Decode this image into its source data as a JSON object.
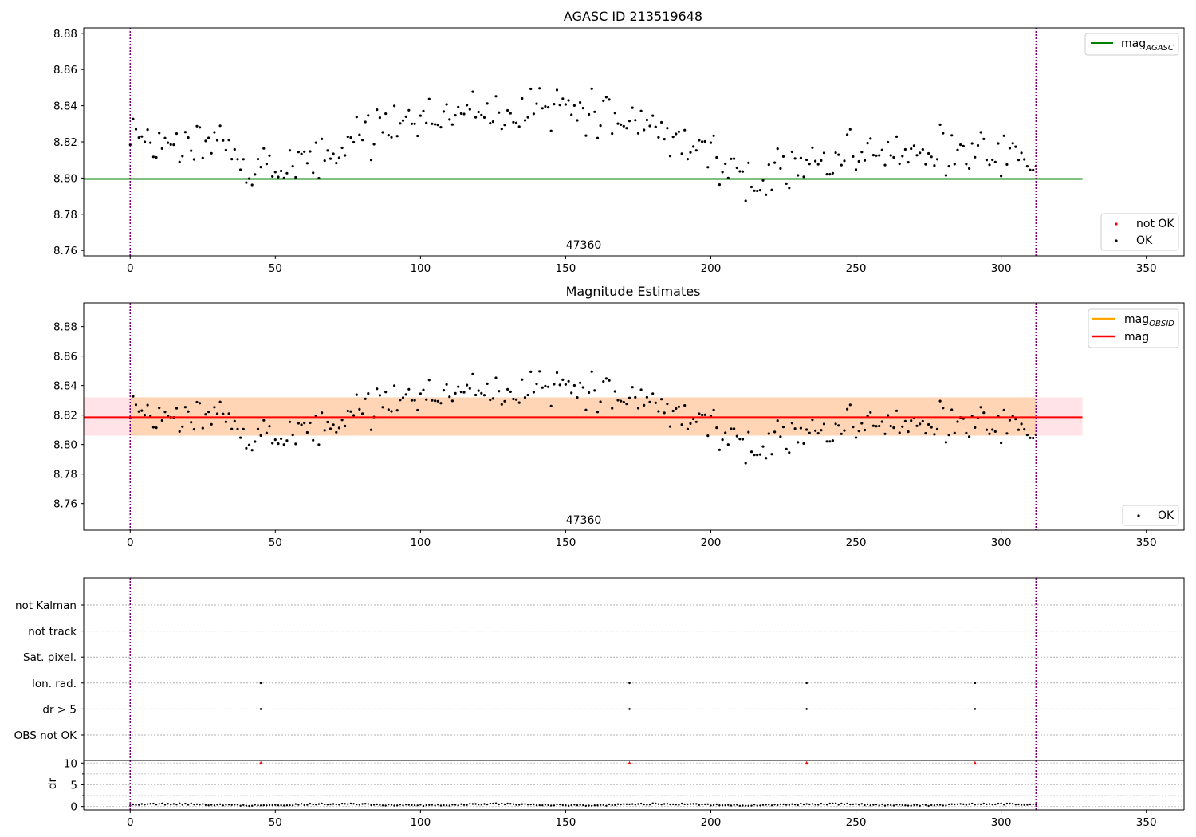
{
  "chart_data": [
    {
      "type": "scatter",
      "title": "AGASC ID 213519648",
      "annotation": "47360",
      "xlim": [
        -16,
        363
      ],
      "ylim": [
        8.757,
        8.883
      ],
      "xticks": [
        "0",
        "50",
        "100",
        "150",
        "200",
        "250",
        "300",
        "350"
      ],
      "yticks": [
        "8.76",
        "8.78",
        "8.80",
        "8.82",
        "8.84",
        "8.86",
        "8.88"
      ],
      "vlines_x": [
        0,
        312
      ],
      "hlines": [
        {
          "name": "mag_AGASC",
          "value": 8.7995,
          "x_range": [
            -16,
            328
          ],
          "color": "#008000"
        }
      ],
      "legend_upper": [
        {
          "label": "mag",
          "subscript": "AGASC",
          "color": "#008000",
          "kind": "line"
        }
      ],
      "legend_lower": [
        {
          "label": "not OK",
          "color": "#ff0000",
          "kind": "point"
        },
        {
          "label": "OK",
          "color": "#000000",
          "kind": "point"
        }
      ],
      "series": [
        {
          "name": "OK",
          "color": "#000000",
          "x": "0..312 (generated in script)",
          "y": "see script"
        }
      ]
    },
    {
      "type": "scatter",
      "title": "Magnitude Estimates",
      "annotation": "47360",
      "xlim": [
        -16,
        363
      ],
      "ylim": [
        8.742,
        8.896
      ],
      "xticks": [
        "0",
        "50",
        "100",
        "150",
        "200",
        "250",
        "300",
        "350"
      ],
      "yticks": [
        "8.76",
        "8.78",
        "8.80",
        "8.82",
        "8.84",
        "8.86",
        "8.88"
      ],
      "vlines_x": [
        0,
        312
      ],
      "hlines": [
        {
          "name": "mag",
          "value": 8.8185,
          "x_range": [
            -16,
            328
          ],
          "color": "#ff0000"
        },
        {
          "name": "mag_OBSID",
          "value": 8.8185,
          "x_range": [
            0,
            312
          ],
          "color": "#ffa500"
        }
      ],
      "bands": [
        {
          "name": "mag band",
          "low": 8.806,
          "high": 8.832,
          "x_range": [
            -16,
            328
          ],
          "color": "#ffc0cb"
        },
        {
          "name": "mag_OBSID band",
          "low": 8.806,
          "high": 8.832,
          "x_range": [
            0,
            312
          ],
          "color": "#ffa500"
        }
      ],
      "legend_upper": [
        {
          "label": "mag",
          "subscript": "OBSID",
          "color": "#ffa500",
          "kind": "line"
        },
        {
          "label": "mag",
          "subscript": "",
          "color": "#ff0000",
          "kind": "line"
        }
      ],
      "legend_lower": [
        {
          "label": "OK",
          "color": "#000000",
          "kind": "point"
        }
      ]
    },
    {
      "type": "scatter",
      "title": "",
      "xlim": [
        -16,
        363
      ],
      "categories": [
        "not Kalman",
        "not track",
        "Sat. pixel.",
        "Ion. rad.",
        "dr > 5",
        "OBS not OK"
      ],
      "vlines_x": [
        0,
        312
      ],
      "flag_points": {
        "Ion. rad.": [
          45,
          172,
          233,
          291
        ],
        "dr > 5": [
          45,
          172,
          233,
          291
        ]
      }
    },
    {
      "type": "scatter",
      "title": "",
      "ylabel": "dr",
      "xlim": [
        -16,
        363
      ],
      "ylim": [
        -0.8,
        10.6
      ],
      "yticks": [
        "0",
        "5",
        "10"
      ],
      "xticks": [
        "0",
        "50",
        "100",
        "150",
        "200",
        "250",
        "300",
        "350"
      ],
      "vlines_x": [
        0,
        312
      ],
      "outlier_markers": {
        "x": [
          45,
          172,
          233,
          291
        ],
        "y": 10,
        "color": "#ff0000"
      },
      "dr_range": [
        0.0,
        1.0
      ]
    }
  ]
}
